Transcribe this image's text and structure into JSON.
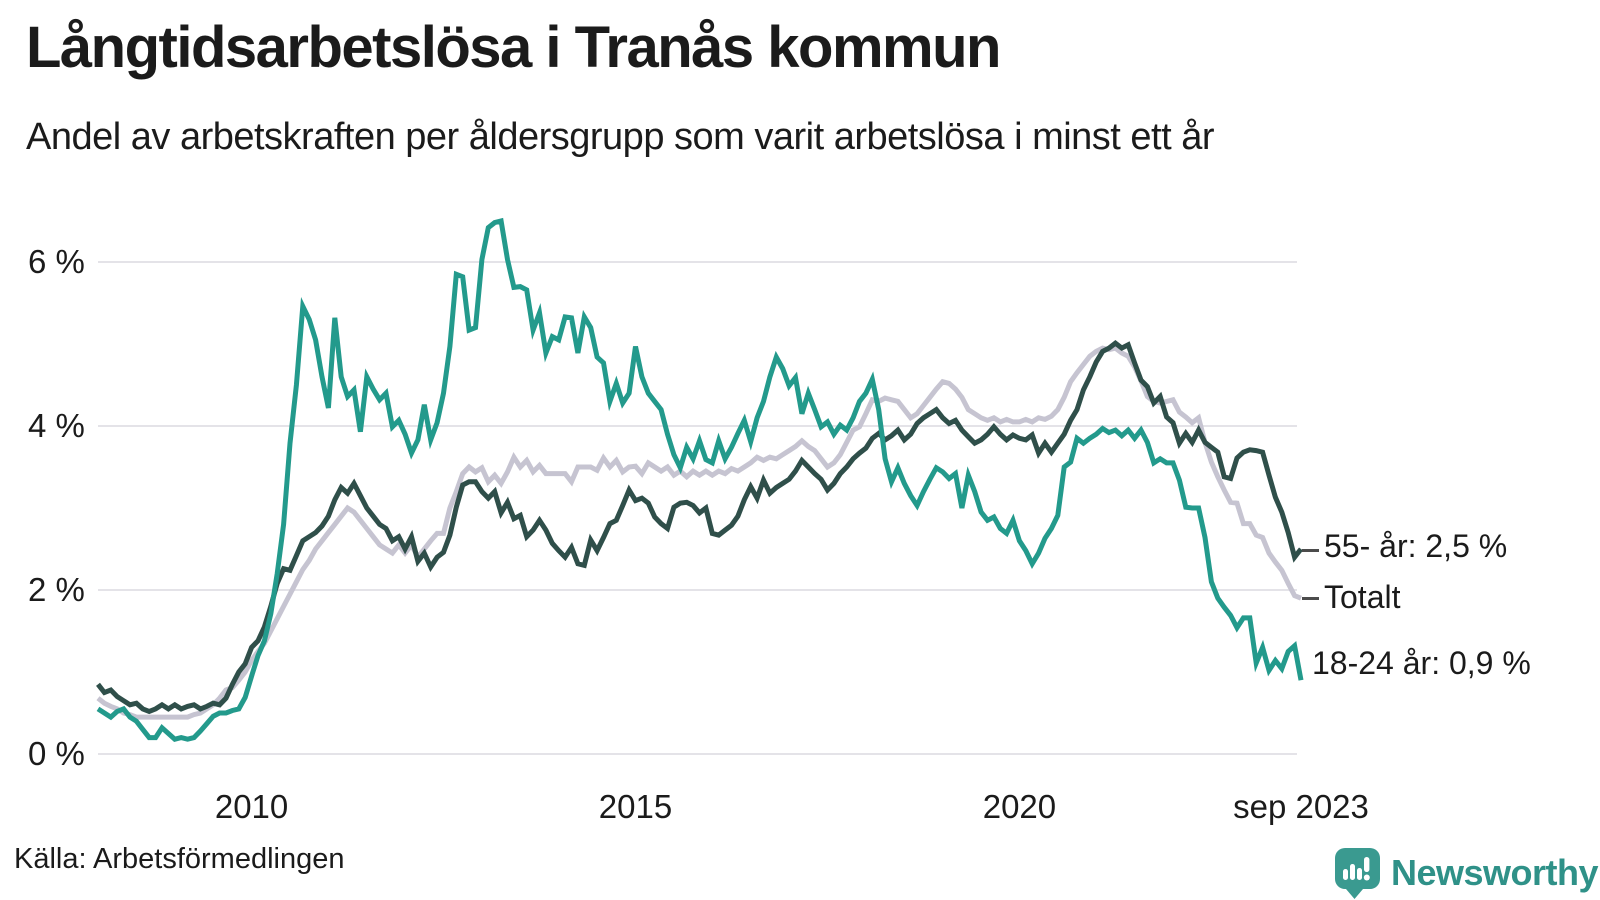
{
  "header": {
    "title": "Långtidsarbetslösa i Tranås kommun",
    "subtitle": "Andel av arbetskraften per åldersgrupp som varit arbetslösa i minst ett år"
  },
  "footer": {
    "source": "Källa: Arbetsförmedlingen",
    "brand": "Newsworthy"
  },
  "colors": {
    "grid": "#e4e3e8",
    "text": "#1b1b1b",
    "brand_teal": "#2f9188",
    "icon_teal": "#3a9a90"
  },
  "chart_data": {
    "type": "line",
    "title": "Långtidsarbetslösa i Tranås kommun",
    "subtitle": "Andel av arbetskraften per åldersgrupp som varit arbetslösa i minst ett år",
    "source": "Källa: Arbetsförmedlingen",
    "unit": "% av arbetskraften",
    "x": {
      "interval": "monthly",
      "start_year": 2008,
      "start_month": 1,
      "end_year": 2023,
      "end_month": 9,
      "ticks": [
        {
          "label": "2010",
          "year": 2010,
          "month": 1
        },
        {
          "label": "2015",
          "year": 2015,
          "month": 1
        },
        {
          "label": "2020",
          "year": 2020,
          "month": 1
        },
        {
          "label": "sep 2023",
          "year": 2023,
          "month": 9
        }
      ]
    },
    "y": {
      "tick_labels": [
        "0 %",
        "2 %",
        "4 %",
        "6 %"
      ],
      "tick_values": [
        0,
        2,
        4,
        6
      ],
      "range": [
        0,
        6.6
      ],
      "grid": true
    },
    "legend_position": "line-end labels, right side",
    "series": [
      {
        "name": "Totalt",
        "end_label": "Totalt",
        "end_value": 1.9,
        "color": "#c6c4d1",
        "values": [
          0.68,
          0.62,
          0.58,
          0.55,
          0.5,
          0.48,
          0.45,
          0.45,
          0.45,
          0.45,
          0.45,
          0.45,
          0.45,
          0.45,
          0.45,
          0.48,
          0.5,
          0.55,
          0.6,
          0.68,
          0.78,
          0.81,
          0.9,
          1.0,
          1.14,
          1.25,
          1.35,
          1.5,
          1.65,
          1.8,
          1.95,
          2.1,
          2.25,
          2.36,
          2.5,
          2.6,
          2.7,
          2.8,
          2.9,
          3.0,
          2.95,
          2.85,
          2.75,
          2.65,
          2.55,
          2.5,
          2.45,
          2.55,
          2.45,
          2.55,
          2.4,
          2.5,
          2.6,
          2.69,
          2.69,
          3.0,
          3.2,
          3.42,
          3.5,
          3.44,
          3.49,
          3.32,
          3.4,
          3.3,
          3.44,
          3.62,
          3.5,
          3.58,
          3.44,
          3.52,
          3.42,
          3.42,
          3.42,
          3.42,
          3.32,
          3.5,
          3.5,
          3.5,
          3.46,
          3.61,
          3.5,
          3.58,
          3.44,
          3.5,
          3.51,
          3.42,
          3.55,
          3.5,
          3.45,
          3.5,
          3.4,
          3.45,
          3.38,
          3.45,
          3.4,
          3.45,
          3.4,
          3.45,
          3.42,
          3.48,
          3.45,
          3.5,
          3.55,
          3.62,
          3.58,
          3.62,
          3.6,
          3.65,
          3.7,
          3.75,
          3.82,
          3.75,
          3.7,
          3.6,
          3.5,
          3.55,
          3.65,
          3.8,
          3.95,
          3.99,
          4.15,
          4.32,
          4.3,
          4.34,
          4.32,
          4.3,
          4.2,
          4.1,
          4.15,
          4.25,
          4.35,
          4.45,
          4.54,
          4.52,
          4.45,
          4.35,
          4.2,
          4.15,
          4.1,
          4.07,
          4.1,
          4.05,
          4.08,
          4.05,
          4.05,
          4.08,
          4.05,
          4.1,
          4.08,
          4.12,
          4.2,
          4.35,
          4.54,
          4.65,
          4.75,
          4.85,
          4.91,
          4.95,
          4.93,
          4.95,
          4.89,
          4.85,
          4.72,
          4.55,
          4.36,
          4.3,
          4.28,
          4.3,
          4.32,
          4.17,
          4.11,
          4.04,
          4.1,
          3.8,
          3.56,
          3.38,
          3.22,
          3.07,
          3.06,
          2.81,
          2.81,
          2.67,
          2.64,
          2.45,
          2.34,
          2.24,
          2.08,
          1.93,
          1.9
        ]
      },
      {
        "name": "55- år",
        "end_label": "55- år: 2,5 %",
        "end_value": 2.5,
        "color": "#2f4f4a",
        "values": [
          0.85,
          0.75,
          0.78,
          0.7,
          0.65,
          0.6,
          0.62,
          0.55,
          0.52,
          0.55,
          0.6,
          0.55,
          0.6,
          0.55,
          0.58,
          0.6,
          0.55,
          0.58,
          0.62,
          0.6,
          0.68,
          0.85,
          1.0,
          1.1,
          1.3,
          1.38,
          1.55,
          1.8,
          2.08,
          2.26,
          2.24,
          2.42,
          2.6,
          2.65,
          2.7,
          2.78,
          2.9,
          3.1,
          3.25,
          3.18,
          3.3,
          3.15,
          3.0,
          2.9,
          2.8,
          2.75,
          2.6,
          2.65,
          2.5,
          2.65,
          2.35,
          2.45,
          2.28,
          2.4,
          2.46,
          2.67,
          3.01,
          3.28,
          3.32,
          3.32,
          3.2,
          3.12,
          3.2,
          2.94,
          3.07,
          2.87,
          2.91,
          2.65,
          2.73,
          2.85,
          2.73,
          2.57,
          2.48,
          2.4,
          2.52,
          2.32,
          2.3,
          2.61,
          2.48,
          2.64,
          2.81,
          2.85,
          3.03,
          3.22,
          3.09,
          3.12,
          3.06,
          2.89,
          2.81,
          2.75,
          3.01,
          3.06,
          3.07,
          3.03,
          2.94,
          3.0,
          2.69,
          2.67,
          2.73,
          2.79,
          2.9,
          3.1,
          3.26,
          3.12,
          3.34,
          3.18,
          3.25,
          3.3,
          3.35,
          3.45,
          3.58,
          3.5,
          3.42,
          3.35,
          3.22,
          3.3,
          3.42,
          3.5,
          3.6,
          3.67,
          3.73,
          3.85,
          3.91,
          3.83,
          3.88,
          3.95,
          3.83,
          3.9,
          4.03,
          4.1,
          4.15,
          4.2,
          4.1,
          4.03,
          4.07,
          3.95,
          3.87,
          3.79,
          3.83,
          3.9,
          3.99,
          3.9,
          3.83,
          3.89,
          3.85,
          3.83,
          3.89,
          3.67,
          3.79,
          3.68,
          3.79,
          3.9,
          4.07,
          4.2,
          4.44,
          4.6,
          4.78,
          4.91,
          4.95,
          5.01,
          4.95,
          4.99,
          4.77,
          4.56,
          4.48,
          4.28,
          4.36,
          4.11,
          4.04,
          3.79,
          3.91,
          3.8,
          3.95,
          3.8,
          3.74,
          3.68,
          3.38,
          3.36,
          3.61,
          3.68,
          3.71,
          3.7,
          3.68,
          3.4,
          3.13,
          2.95,
          2.7,
          2.4,
          2.5
        ]
      },
      {
        "name": "18-24 år",
        "end_label": "18-24 år: 0,9 %",
        "end_value": 0.9,
        "color": "#239a8c",
        "values": [
          0.55,
          0.5,
          0.45,
          0.52,
          0.55,
          0.45,
          0.4,
          0.3,
          0.2,
          0.2,
          0.32,
          0.25,
          0.18,
          0.2,
          0.18,
          0.2,
          0.28,
          0.37,
          0.46,
          0.5,
          0.5,
          0.53,
          0.55,
          0.69,
          0.95,
          1.2,
          1.38,
          1.71,
          2.2,
          2.8,
          3.79,
          4.5,
          5.46,
          5.3,
          5.05,
          4.6,
          4.22,
          5.32,
          4.6,
          4.36,
          4.44,
          3.93,
          4.6,
          4.45,
          4.32,
          4.4,
          3.99,
          4.07,
          3.9,
          3.67,
          3.83,
          4.26,
          3.83,
          4.04,
          4.4,
          4.97,
          5.85,
          5.82,
          5.17,
          5.2,
          6.03,
          6.42,
          6.48,
          6.5,
          6.03,
          5.69,
          5.7,
          5.66,
          5.17,
          5.38,
          4.89,
          5.09,
          5.05,
          5.33,
          5.32,
          4.89,
          5.33,
          5.2,
          4.84,
          4.77,
          4.3,
          4.52,
          4.28,
          4.4,
          4.97,
          4.6,
          4.4,
          4.3,
          4.2,
          3.9,
          3.65,
          3.49,
          3.74,
          3.6,
          3.82,
          3.59,
          3.55,
          3.82,
          3.6,
          3.74,
          3.91,
          4.07,
          3.81,
          4.1,
          4.3,
          4.6,
          4.84,
          4.7,
          4.49,
          4.59,
          4.15,
          4.4,
          4.2,
          3.99,
          4.05,
          3.9,
          4.01,
          3.95,
          4.1,
          4.3,
          4.4,
          4.57,
          4.2,
          3.6,
          3.32,
          3.49,
          3.3,
          3.15,
          3.03,
          3.2,
          3.35,
          3.49,
          3.44,
          3.36,
          3.42,
          3.0,
          3.4,
          3.2,
          2.95,
          2.85,
          2.89,
          2.75,
          2.69,
          2.85,
          2.6,
          2.48,
          2.32,
          2.45,
          2.63,
          2.75,
          2.91,
          3.5,
          3.56,
          3.85,
          3.79,
          3.85,
          3.9,
          3.97,
          3.92,
          3.95,
          3.88,
          3.95,
          3.85,
          3.95,
          3.8,
          3.55,
          3.6,
          3.55,
          3.55,
          3.34,
          3.01,
          3.0,
          3.0,
          2.64,
          2.1,
          1.9,
          1.79,
          1.69,
          1.54,
          1.66,
          1.66,
          1.11,
          1.3,
          1.02,
          1.14,
          1.04,
          1.25,
          1.32,
          0.9
        ]
      }
    ]
  }
}
